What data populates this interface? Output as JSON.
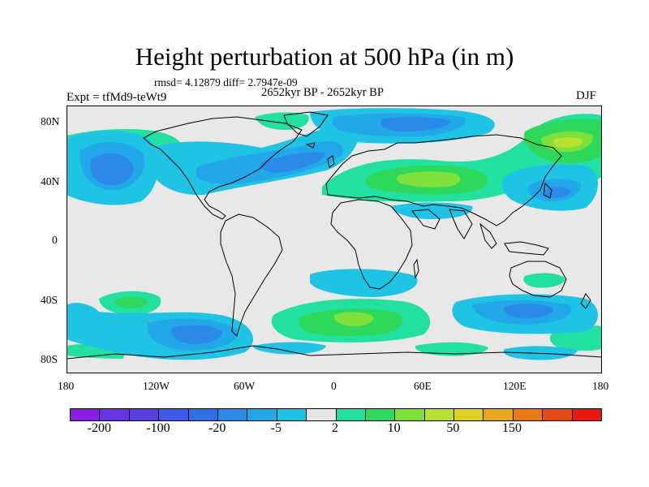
{
  "title": "Height perturbation at 500 hPa (in m)",
  "stats_line": "rmsd= 4.12879 diff= 2.7947e-09",
  "experiment_label": "Expt = tfMd9-teWt9",
  "period_label": "2652kyr BP - 2652kyr BP",
  "season_label": "DJF",
  "lat_ticks": [
    "80N",
    "40N",
    "0",
    "40S",
    "80S"
  ],
  "lon_ticks": [
    "180",
    "120W",
    "60W",
    "0",
    "60E",
    "120E",
    "180"
  ],
  "colors": {
    "background": "#e8e8e8",
    "palette": [
      "#8a1fe0",
      "#6a33e6",
      "#5a3fe0",
      "#3f5ae6",
      "#2f6fe6",
      "#2a8ae6",
      "#22a8e8",
      "#1fc3e4",
      "#e6e6e6",
      "#22e0a0",
      "#2ed85a",
      "#7ee03a",
      "#b8e030",
      "#e0d020",
      "#e6a81a",
      "#e67a18",
      "#e64a16",
      "#e61a10"
    ],
    "coast": "#000000"
  },
  "legend": {
    "labels": [
      {
        "text": "-200",
        "boundary": 1
      },
      {
        "text": "-100",
        "boundary": 3
      },
      {
        "text": "-20",
        "boundary": 5
      },
      {
        "text": "-5",
        "boundary": 7
      },
      {
        "text": "2",
        "boundary": 9
      },
      {
        "text": "10",
        "boundary": 11
      },
      {
        "text": "50",
        "boundary": 13
      },
      {
        "text": "150",
        "boundary": 15
      }
    ]
  }
}
